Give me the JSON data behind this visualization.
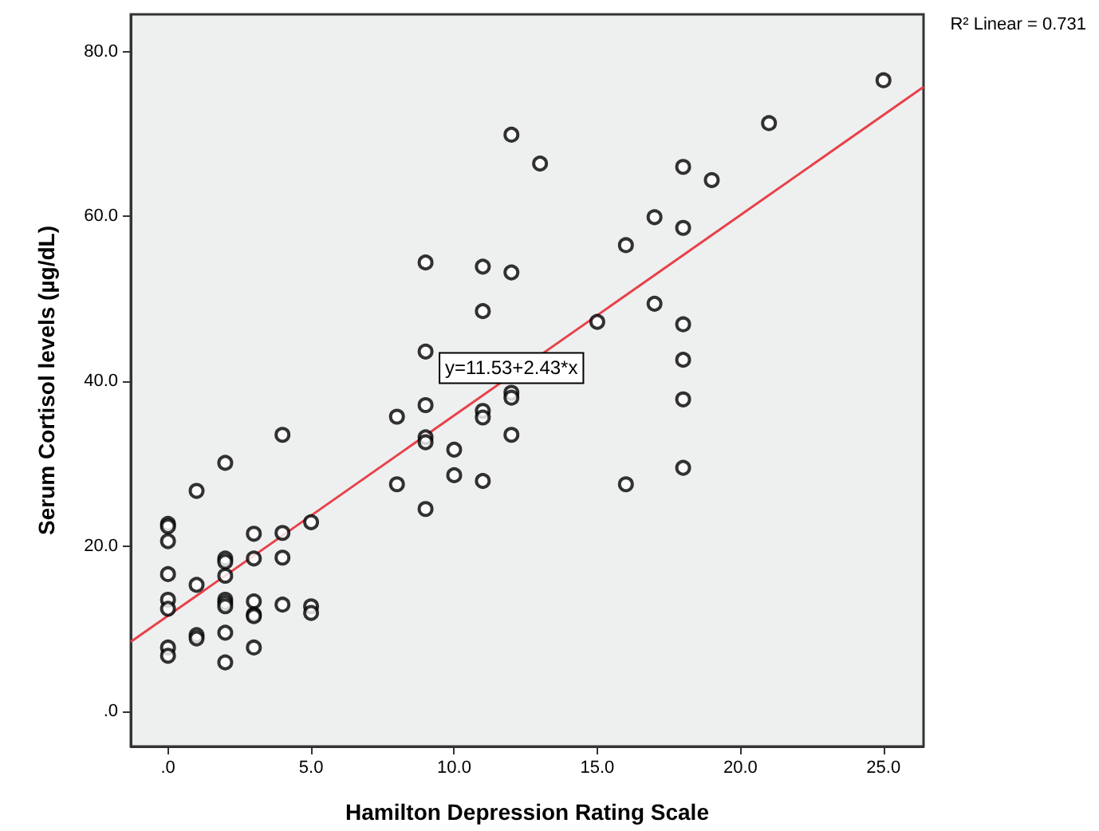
{
  "chart_data": {
    "type": "scatter",
    "xlabel": "Hamilton Depression Rating Scale",
    "ylabel": "Serum Cortisol levels (µg/dL)",
    "xlim": [
      -1.3,
      26.4
    ],
    "ylim": [
      -4.3,
      84.5
    ],
    "xticks": [
      {
        "value": 0,
        "label": ".0"
      },
      {
        "value": 5,
        "label": "5.0"
      },
      {
        "value": 10,
        "label": "10.0"
      },
      {
        "value": 15,
        "label": "15.0"
      },
      {
        "value": 20,
        "label": "20.0"
      },
      {
        "value": 25,
        "label": "25.0"
      }
    ],
    "yticks": [
      {
        "value": 0,
        "label": ".0"
      },
      {
        "value": 20,
        "label": "20.0"
      },
      {
        "value": 40,
        "label": "40.0"
      },
      {
        "value": 60,
        "label": "60.0"
      },
      {
        "value": 80,
        "label": "80.0"
      }
    ],
    "marker": "circle",
    "annotations": [
      {
        "text": "y=11.53+2.43*x",
        "x": 12,
        "y": 41.6
      },
      "R² Linear = 0.731"
    ],
    "series": [
      {
        "color": "#000000",
        "x": [
          0,
          0,
          0,
          0,
          0,
          0,
          0,
          0,
          1,
          1,
          1,
          1,
          2,
          2,
          2,
          2,
          2,
          2,
          2,
          2,
          2,
          3,
          3,
          3,
          3,
          3,
          3,
          4,
          4,
          4,
          4,
          5,
          5,
          5,
          8,
          8,
          9,
          9,
          9,
          9,
          9,
          9,
          10,
          10,
          11,
          11,
          11,
          11,
          11,
          12,
          12,
          12,
          12,
          12,
          13,
          15,
          16,
          16,
          17,
          17,
          18,
          18,
          18,
          18,
          18,
          18,
          19,
          21,
          25
        ],
        "values": [
          22.7,
          22.4,
          20.6,
          16.6,
          13.5,
          12.4,
          7.7,
          6.7,
          26.7,
          15.3,
          9.2,
          8.8,
          30.1,
          18.5,
          18.1,
          16.4,
          13.5,
          13.1,
          12.7,
          9.5,
          5.9,
          21.5,
          18.5,
          13.3,
          11.7,
          11.5,
          7.7,
          33.5,
          21.6,
          18.6,
          12.9,
          22.9,
          12.7,
          11.9,
          35.7,
          27.5,
          54.4,
          43.6,
          37.1,
          33.2,
          32.6,
          24.5,
          31.7,
          28.6,
          53.9,
          48.5,
          36.4,
          35.6,
          27.9,
          69.9,
          53.2,
          38.6,
          38.0,
          33.5,
          66.4,
          47.2,
          56.5,
          27.5,
          59.9,
          49.4,
          66.0,
          58.6,
          46.9,
          42.6,
          37.8,
          29.5,
          64.4,
          71.3,
          76.5
        ]
      },
      {
        "type": "line",
        "color": "#e8414b",
        "marker": "none",
        "x": [
          -1.3,
          26.4
        ],
        "values": [
          8.4,
          75.7
        ]
      }
    ]
  }
}
